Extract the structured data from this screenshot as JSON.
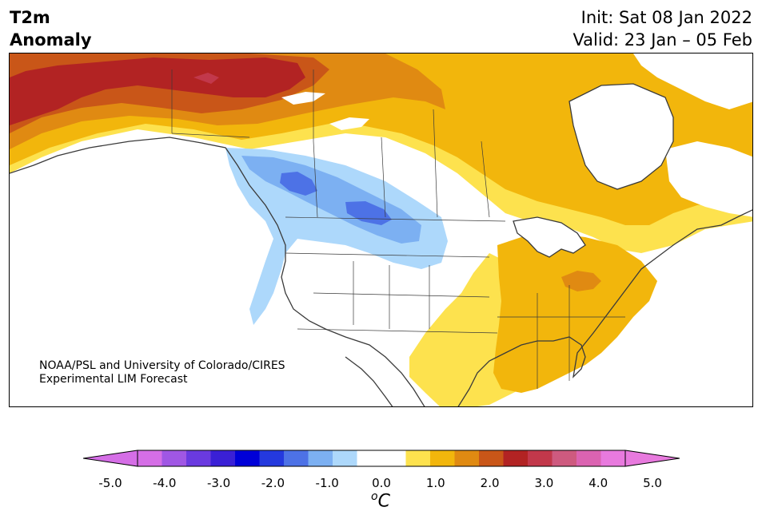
{
  "header": {
    "title_line1": "T2m",
    "title_line2": "Anomaly",
    "init_text": "Init: Sat 08 Jan 2022",
    "valid_text": "Valid: 23 Jan – 05 Feb"
  },
  "map": {
    "region": "North America",
    "credit_line1": "NOAA/PSL and University of Colorado/CIRES",
    "credit_line2": "Experimental LIM Forecast"
  },
  "colorbar": {
    "unit_superscript": "o",
    "unit_main": "C",
    "ticks": [
      "-5.0",
      "-4.0",
      "-3.0",
      "-2.0",
      "-1.0",
      "0.0",
      "1.0",
      "2.0",
      "3.0",
      "4.0",
      "5.0"
    ],
    "colors": [
      "#d56ee6",
      "#a057e4",
      "#6a3ae0",
      "#3a20d6",
      "#0000d8",
      "#2439de",
      "#4d72e6",
      "#7cb0f2",
      "#add8fb",
      "#ffffff",
      "#ffffff",
      "#fde24e",
      "#f2b60c",
      "#e08a12",
      "#c95618",
      "#b22323",
      "#c2384b",
      "#ce5a7f",
      "#db63b1",
      "#e87ade"
    ],
    "under_color": "#d56ee6",
    "over_color": "#e87ade"
  },
  "legend_colors": {
    "neg_1": "#add8fb",
    "neg_2": "#7cb0f2",
    "neg_3": "#4d72e6",
    "pos_1": "#fde24e",
    "pos_2": "#f2b60c",
    "pos_3": "#e08a12",
    "pos_4": "#c95618",
    "pos_5": "#b22323"
  }
}
